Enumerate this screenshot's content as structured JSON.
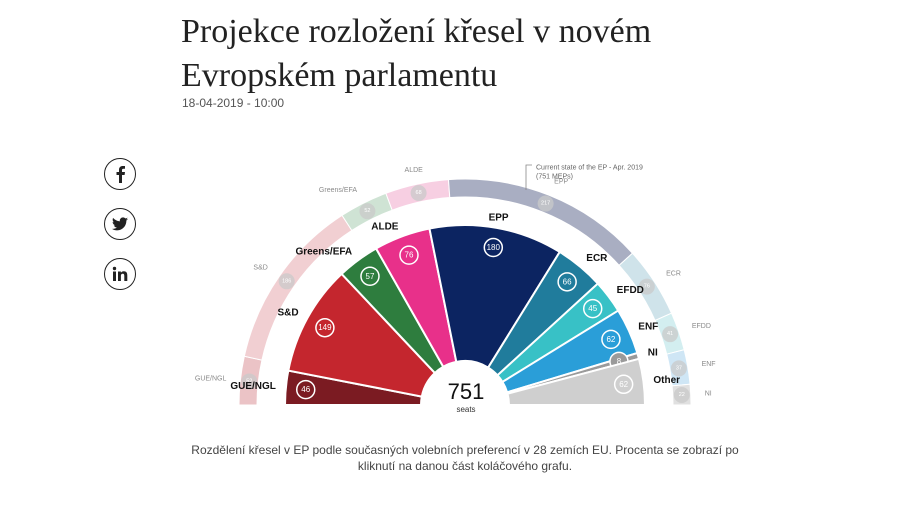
{
  "article": {
    "title_line1": "Projekce rozložení křesel v novém",
    "title_line2": "Evropském parlamentu",
    "date": "18-04-2019 - 10:00"
  },
  "share": [
    {
      "name": "facebook-icon",
      "label": "f"
    },
    {
      "name": "twitter-icon",
      "label": "twitter"
    },
    {
      "name": "linkedin-icon",
      "label": "in"
    }
  ],
  "caption": "Rozdělení křesel v EP podle současných volebních preferencí v 28 zemích EU. Procenta se zobrazí po kliknutí na danou část koláčového grafu.",
  "chart_data": {
    "type": "pie",
    "total_label": "751",
    "total_sublabel": "seats",
    "current_note_lines": [
      "Current state of the EP - Apr. 2019",
      "(751 MEPs)"
    ],
    "projection": [
      {
        "name": "GUE/NGL",
        "value": 46,
        "color": "#7b1b22"
      },
      {
        "name": "S&D",
        "value": 149,
        "color": "#c4262e"
      },
      {
        "name": "Greens/EFA",
        "value": 57,
        "color": "#2e7d3e"
      },
      {
        "name": "ALDE",
        "value": 76,
        "color": "#e8308a"
      },
      {
        "name": "EPP",
        "value": 180,
        "color": "#0c2461"
      },
      {
        "name": "ECR",
        "value": 66,
        "color": "#207c9c"
      },
      {
        "name": "EFDD",
        "value": 45,
        "color": "#38c1c6"
      },
      {
        "name": "ENF",
        "value": 62,
        "color": "#2a9ed8"
      },
      {
        "name": "NI",
        "value": 8,
        "color": "#9a9a9a"
      },
      {
        "name": "Other",
        "value": 62,
        "color": "#cfcfcf"
      }
    ],
    "current": [
      {
        "name": "GUE/NGL",
        "value": 52,
        "color": "#ebc3c6"
      },
      {
        "name": "S&D",
        "value": 186,
        "color": "#f1cfd2"
      },
      {
        "name": "Greens/EFA",
        "value": 52,
        "color": "#cfe3d4"
      },
      {
        "name": "ALDE",
        "value": 68,
        "color": "#f7cfe2"
      },
      {
        "name": "EPP",
        "value": 217,
        "color": "#a9aec2"
      },
      {
        "name": "ECR",
        "value": 76,
        "color": "#cfe3ea"
      },
      {
        "name": "EFDD",
        "value": 41,
        "color": "#d3eef0"
      },
      {
        "name": "ENF",
        "value": 37,
        "color": "#cfe6f5"
      },
      {
        "name": "NI",
        "value": 22,
        "color": "#e0e0e0"
      }
    ]
  }
}
